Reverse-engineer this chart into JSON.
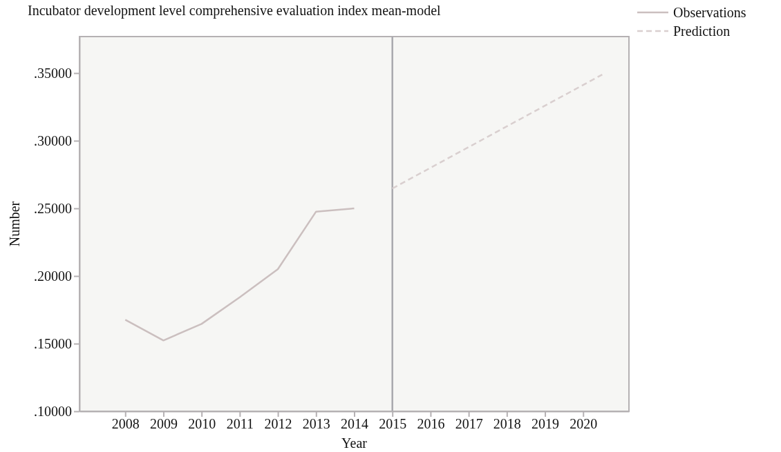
{
  "chart_data": {
    "type": "line",
    "title": "Incubator development level comprehensive evaluation index mean-model",
    "xlabel": "Year",
    "ylabel": "Number",
    "xlim": [
      2006.8,
      2021.2
    ],
    "xticks": [
      2008,
      2009,
      2010,
      2011,
      2012,
      2013,
      2014,
      2015,
      2016,
      2017,
      2018,
      2019,
      2020
    ],
    "ylim": [
      0.1,
      0.377
    ],
    "yticks": [
      {
        "value": 0.1,
        "label": ".10000"
      },
      {
        "value": 0.15,
        "label": ".15000"
      },
      {
        "value": 0.2,
        "label": ".20000"
      },
      {
        "value": 0.25,
        "label": ".25000"
      },
      {
        "value": 0.3,
        "label": ".30000"
      },
      {
        "value": 0.35,
        "label": ".35000"
      }
    ],
    "series": [
      {
        "name": "Observations",
        "color": "#cbbfbf",
        "line_style": "solid",
        "x": [
          2008,
          2009,
          2010,
          2011,
          2012,
          2013,
          2014
        ],
        "values": [
          0.1677,
          0.1524,
          0.1646,
          0.1843,
          0.2051,
          0.2476,
          0.25
        ]
      },
      {
        "name": "Prediction",
        "color": "#d9cfcf",
        "line_style": "dashed",
        "x": [
          2015,
          2020.5
        ],
        "values": [
          0.2647,
          0.3489
        ]
      }
    ],
    "ref_lines": [
      {
        "axis": "x",
        "value": 2015,
        "color": "#a9a9ae"
      }
    ],
    "legend": "top right",
    "grid": false
  }
}
